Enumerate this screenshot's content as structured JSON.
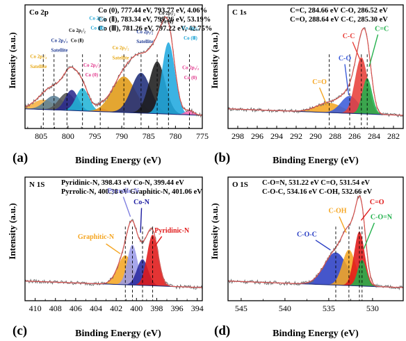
{
  "figure": {
    "xlabel": "Binding Energy (eV)",
    "ylabel": "Intensity (a.u.)",
    "panel_letters": [
      "(a)",
      "(b)",
      "(c)",
      "(d)"
    ]
  },
  "chart_data": [
    {
      "type": "line",
      "panel": "(a)",
      "title": "Co 2p",
      "xlabel": "Binding Energy (eV)",
      "ylabel": "Intensity (a.u.)",
      "xlim": [
        808,
        775
      ],
      "xticks": [
        810,
        805,
        800,
        795,
        790,
        785,
        780,
        775
      ],
      "grid": false,
      "info_lines": [
        "Co (0), 777.44 eV, 793.77 eV, 4.06%",
        "Co (Ⅱ), 783.34 eV, 799.26 eV, 53.19%",
        "Co (Ⅲ), 781.26 eV, 797.22 eV, 42.75%"
      ],
      "peaks": [
        {
          "center": 804.6,
          "height": 0.09,
          "width": 1.9,
          "color": "#f5b041"
        },
        {
          "center": 802.6,
          "height": 0.13,
          "width": 1.7,
          "color": "#5b7f95"
        },
        {
          "center": 800.2,
          "height": 0.16,
          "width": 1.5,
          "color": "#555555"
        },
        {
          "center": 799.3,
          "height": 0.19,
          "width": 1.2,
          "color": "#2a2a8e"
        },
        {
          "center": 797.3,
          "height": 0.21,
          "width": 1.2,
          "color": "#22b4d6"
        },
        {
          "center": 793.8,
          "height": 0.03,
          "width": 0.9,
          "color": "#ff69b4"
        },
        {
          "center": 789.6,
          "height": 0.33,
          "width": 2.2,
          "color": "#e09a14"
        },
        {
          "center": 786.4,
          "height": 0.37,
          "width": 1.8,
          "color": "#1f2e7a"
        },
        {
          "center": 783.4,
          "height": 0.48,
          "width": 1.5,
          "color": "#1c1c1c"
        },
        {
          "center": 781.3,
          "height": 0.66,
          "width": 1.2,
          "color": "#20a8df"
        },
        {
          "center": 777.4,
          "height": 0.04,
          "width": 0.8,
          "color": "#ff69b4"
        }
      ],
      "dashed_lines": [
        804.6,
        802.6,
        800.2,
        797.3,
        794.0,
        789.6,
        786.4,
        783.4,
        781.3,
        777.4
      ],
      "annotations": [
        {
          "text": "Co 2p₃/₂",
          "x": 805.5,
          "y": 0.57,
          "color": "#e6a817"
        },
        {
          "text": "Satellite",
          "x": 805.5,
          "y": 0.49,
          "color": "#e6a817"
        },
        {
          "text": "Co 2p₁/₂",
          "x": 801.6,
          "y": 0.7,
          "color": "#1f3a93"
        },
        {
          "text": "Satellite",
          "x": 801.6,
          "y": 0.62,
          "color": "#1f3a93"
        },
        {
          "text": "Co 2p₁/₂",
          "x": 798.3,
          "y": 0.78,
          "color": "#111111"
        },
        {
          "text": "Co (Ⅱ)",
          "x": 798.3,
          "y": 0.7,
          "color": "#111111"
        },
        {
          "text": "Co 2p₁/₂",
          "x": 794.5,
          "y": 0.88,
          "color": "#1aa3d4"
        },
        {
          "text": "Co (Ⅲ)",
          "x": 794.5,
          "y": 0.8,
          "color": "#1aa3d4"
        },
        {
          "text": "Co 2p₁/₂",
          "x": 795.6,
          "y": 0.5,
          "color": "#e0338a"
        },
        {
          "text": "Co (0)",
          "x": 795.6,
          "y": 0.42,
          "color": "#e0338a"
        },
        {
          "text": "Co 2p₃/₂",
          "x": 790.2,
          "y": 0.64,
          "color": "#e6a817"
        },
        {
          "text": "Satellite",
          "x": 790.2,
          "y": 0.56,
          "color": "#e6a817"
        },
        {
          "text": "Co 2p₃/₂",
          "x": 785.7,
          "y": 0.77,
          "color": "#1f3a93"
        },
        {
          "text": "Satellite",
          "x": 785.7,
          "y": 0.69,
          "color": "#1f3a93"
        },
        {
          "text": "Co 2p₃/₂",
          "x": 781.6,
          "y": 0.92,
          "color": "#111111"
        },
        {
          "text": "Co (Ⅱ)",
          "x": 781.6,
          "y": 0.85,
          "color": "#111111"
        },
        {
          "text": "Co 2p₃/₂",
          "x": 777.2,
          "y": 0.8,
          "color": "#1aa3d4"
        },
        {
          "text": "Co (Ⅲ)",
          "x": 777.2,
          "y": 0.72,
          "color": "#1aa3d4"
        },
        {
          "text": "Co 2p₃/₂",
          "x": 777.2,
          "y": 0.48,
          "color": "#e0338a"
        },
        {
          "text": "Co (0)",
          "x": 777.2,
          "y": 0.4,
          "color": "#e0338a"
        }
      ]
    },
    {
      "type": "line",
      "panel": "(b)",
      "title": "C 1s",
      "xlabel": "Binding Energy (eV)",
      "ylabel": "Intensity (a.u.)",
      "xlim": [
        299,
        281
      ],
      "xticks": [
        298,
        296,
        294,
        292,
        290,
        288,
        286,
        284,
        282
      ],
      "grid": false,
      "info_lines": [
        "C=C, 284.66 eV   C-O, 286.52 eV",
        "C=O, 288.64 eV   C-C, 285.30 eV"
      ],
      "peaks": [
        {
          "center": 288.6,
          "height": 0.09,
          "width": 1.3,
          "color": "#f5a623"
        },
        {
          "center": 286.5,
          "height": 0.16,
          "width": 0.9,
          "color": "#3b5bd9"
        },
        {
          "center": 285.3,
          "height": 0.52,
          "width": 0.65,
          "color": "#e8403a"
        },
        {
          "center": 284.7,
          "height": 0.33,
          "width": 0.5,
          "color": "#22b14c"
        }
      ],
      "dashed_lines": [
        288.6,
        286.5,
        285.3,
        284.7
      ],
      "annotations": [
        {
          "text": "C=O",
          "x": 289.6,
          "y": 0.36,
          "color": "#f5a623"
        },
        {
          "text": "C-O",
          "x": 287.0,
          "y": 0.55,
          "color": "#3b5bd9"
        },
        {
          "text": "C-C",
          "x": 286.6,
          "y": 0.73,
          "color": "#e8403a"
        },
        {
          "text": "C=C",
          "x": 283.2,
          "y": 0.79,
          "color": "#22b14c"
        }
      ]
    },
    {
      "type": "line",
      "panel": "(c)",
      "title": "N 1S",
      "xlabel": "Binding Energy (eV)",
      "ylabel": "Intensity (a.u.)",
      "xlim": [
        411,
        393.5
      ],
      "xticks": [
        410,
        408,
        406,
        404,
        402,
        400,
        398,
        396,
        394
      ],
      "grid": false,
      "info_lines": [
        "Pyridinic-N, 398.43 eV   Co-N, 399.44 eV",
        "Pyrrolic-N, 400.38 eV   Graphitic-N, 401.06 eV"
      ],
      "peaks": [
        {
          "center": 401.1,
          "height": 0.27,
          "width": 0.75,
          "color": "#f5a623"
        },
        {
          "center": 400.4,
          "height": 0.37,
          "width": 0.5,
          "color": "#9b9be8"
        },
        {
          "center": 399.4,
          "height": 0.24,
          "width": 0.55,
          "color": "#2a2aa0"
        },
        {
          "center": 398.4,
          "height": 0.47,
          "width": 0.55,
          "color": "#e01818"
        }
      ],
      "dashed_lines": [
        401.1,
        400.4,
        399.4,
        398.4
      ],
      "annotations": [
        {
          "text": "Pyrrolic-N",
          "x": 401.3,
          "y": 0.87,
          "color": "#8080e0"
        },
        {
          "text": "Co-N",
          "x": 399.5,
          "y": 0.78,
          "color": "#1a1aa0"
        },
        {
          "text": "Graphitic-N",
          "x": 404.0,
          "y": 0.5,
          "color": "#f5a623"
        },
        {
          "text": "Pyridinic-N",
          "x": 396.5,
          "y": 0.55,
          "color": "#e01818"
        }
      ]
    },
    {
      "type": "line",
      "panel": "(d)",
      "title": "O 1S",
      "xlabel": "Binding Energy (eV)",
      "ylabel": "Intensity (a.u.)",
      "xlim": [
        546.5,
        526.5
      ],
      "xticks": [
        545,
        540,
        535,
        530
      ],
      "grid": false,
      "info_lines": [
        "C-O=N, 531.22 eV   C=O, 531.54 eV",
        "C-O-C, 534.16 eV   C-OH, 532.66 eV"
      ],
      "peaks": [
        {
          "center": 534.2,
          "height": 0.3,
          "width": 1.3,
          "color": "#2b3fc4"
        },
        {
          "center": 532.7,
          "height": 0.33,
          "width": 0.75,
          "color": "#f5a623"
        },
        {
          "center": 531.5,
          "height": 0.5,
          "width": 0.6,
          "color": "#e01818"
        },
        {
          "center": 531.2,
          "height": 0.24,
          "width": 0.5,
          "color": "#22b14c"
        }
      ],
      "dashed_lines": [
        534.2,
        532.7,
        531.5,
        531.2
      ],
      "annotations": [
        {
          "text": "C-O-C",
          "x": 537.5,
          "y": 0.52,
          "color": "#2b3fc4"
        },
        {
          "text": "C-OH",
          "x": 534.0,
          "y": 0.71,
          "color": "#f5a623"
        },
        {
          "text": "C=O",
          "x": 529.5,
          "y": 0.78,
          "color": "#e01818"
        },
        {
          "text": "C-O=N",
          "x": 529.0,
          "y": 0.66,
          "color": "#22b14c"
        }
      ]
    }
  ]
}
